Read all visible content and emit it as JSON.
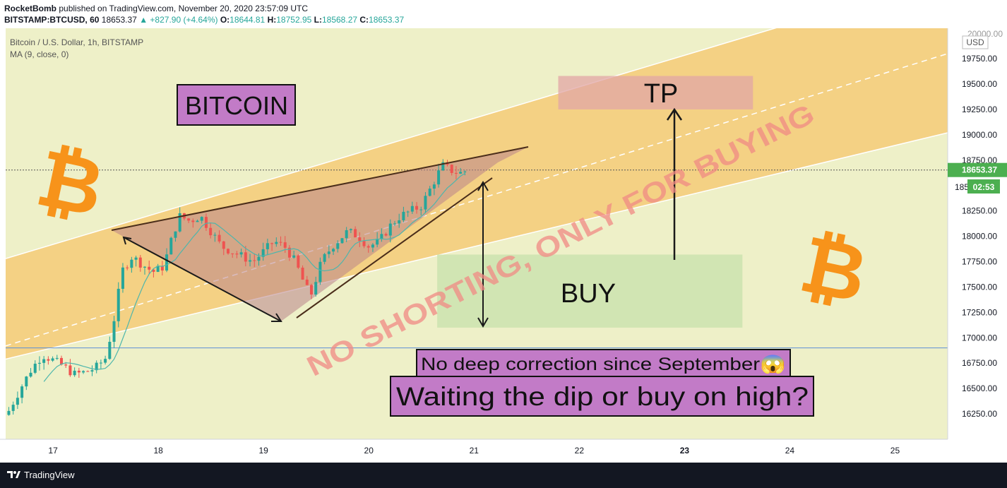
{
  "header": {
    "author": "RocketBomb",
    "published_text": " published on TradingView.com, November 20, 2020 23:57:09 UTC",
    "symbol": "BITSTAMP:BTCUSD, 60",
    "last": "18653.37",
    "change": "▲ +827.90 (+4.64%)",
    "o_label": "O:",
    "o_value": "18644.81",
    "h_label": "H:",
    "h_value": "18752.95",
    "l_label": "L:",
    "l_value": "18568.27",
    "c_label": "C:",
    "c_value": "18653.37"
  },
  "legend": {
    "title": "Bitcoin / U.S. Dollar, 1h, BITSTAMP",
    "indicator": "MA (9, close, 0)"
  },
  "price_scale": {
    "currency": "USD",
    "top_label": "20000.00",
    "last_price_label": "18653.37",
    "partial_label": "185",
    "countdown": "02:53"
  },
  "annotations": {
    "bitcoin": "BITCOIN",
    "tp": "TP",
    "buy": "BUY",
    "watermark": "NO SHORTING, ONLY FOR BUYING",
    "correction": "No deep correction since September😱",
    "question": "Waiting the dip or buy on high?"
  },
  "footer": {
    "brand": "TradingView"
  },
  "colors": {
    "up": "#26a69a",
    "down": "#ef5350",
    "ma": "#4db6ac",
    "channel_fill": "#f5c76e",
    "wedge_fill": "#c8897c",
    "label_purple": "#c27bc7",
    "bitcoin_orange": "#f7931a",
    "last_price_green": "#4caf50"
  },
  "chart_data": {
    "type": "candlestick",
    "x_tick_labels": [
      "17",
      "18",
      "19",
      "20",
      "21",
      "22",
      "23",
      "24",
      "25"
    ],
    "y_tick_labels": [
      "19750.00",
      "19500.00",
      "19250.00",
      "19000.00",
      "18750.00",
      "18250.00",
      "18000.00",
      "17750.00",
      "17500.00",
      "17250.00",
      "17000.00",
      "16750.00",
      "16500.00",
      "16250.00"
    ],
    "ylim": [
      16000,
      20050
    ],
    "xlim": [
      16.55,
      25.5
    ],
    "horizontal_line": 16900,
    "last_price": 18653.37,
    "candles_anchor": [
      [
        16.58,
        16280
      ],
      [
        16.7,
        16520
      ],
      [
        16.8,
        16700
      ],
      [
        16.9,
        16830
      ],
      [
        17.0,
        16780
      ],
      [
        17.1,
        16720
      ],
      [
        17.2,
        16640
      ],
      [
        17.3,
        16660
      ],
      [
        17.4,
        16700
      ],
      [
        17.5,
        16800
      ],
      [
        17.6,
        17280
      ],
      [
        17.65,
        17650
      ],
      [
        17.75,
        17800
      ],
      [
        17.85,
        17720
      ],
      [
        17.95,
        17650
      ],
      [
        18.05,
        17700
      ],
      [
        18.12,
        17950
      ],
      [
        18.2,
        18200
      ],
      [
        18.3,
        18150
      ],
      [
        18.4,
        18200
      ],
      [
        18.5,
        18050
      ],
      [
        18.6,
        17900
      ],
      [
        18.7,
        17850
      ],
      [
        18.8,
        17800
      ],
      [
        18.9,
        17750
      ],
      [
        19.0,
        17850
      ],
      [
        19.1,
        17950
      ],
      [
        19.2,
        17900
      ],
      [
        19.3,
        17750
      ],
      [
        19.4,
        17500
      ],
      [
        19.45,
        17420
      ],
      [
        19.55,
        17750
      ],
      [
        19.65,
        17900
      ],
      [
        19.8,
        18050
      ],
      [
        19.9,
        18000
      ],
      [
        20.0,
        17900
      ],
      [
        20.1,
        17950
      ],
      [
        20.2,
        18100
      ],
      [
        20.3,
        18200
      ],
      [
        20.4,
        18250
      ],
      [
        20.5,
        18300
      ],
      [
        20.6,
        18500
      ],
      [
        20.7,
        18700
      ],
      [
        20.78,
        18650
      ],
      [
        20.86,
        18620
      ],
      [
        20.94,
        18653
      ]
    ],
    "ma_period": 9,
    "channel": {
      "lower_start": [
        16.55,
        16790
      ],
      "lower_end": [
        25.5,
        19020
      ],
      "mid_start": [
        16.55,
        16920
      ],
      "mid_end": [
        25.5,
        19800
      ],
      "upper_start": [
        16.55,
        17780
      ],
      "upper_end": [
        25.5,
        20560
      ]
    },
    "zones": {
      "tp": {
        "x": [
          21.8,
          23.65
        ],
        "y": [
          19250,
          19580
        ]
      },
      "buy": {
        "x": [
          20.65,
          23.55
        ],
        "y": [
          17100,
          17820
        ]
      }
    }
  }
}
